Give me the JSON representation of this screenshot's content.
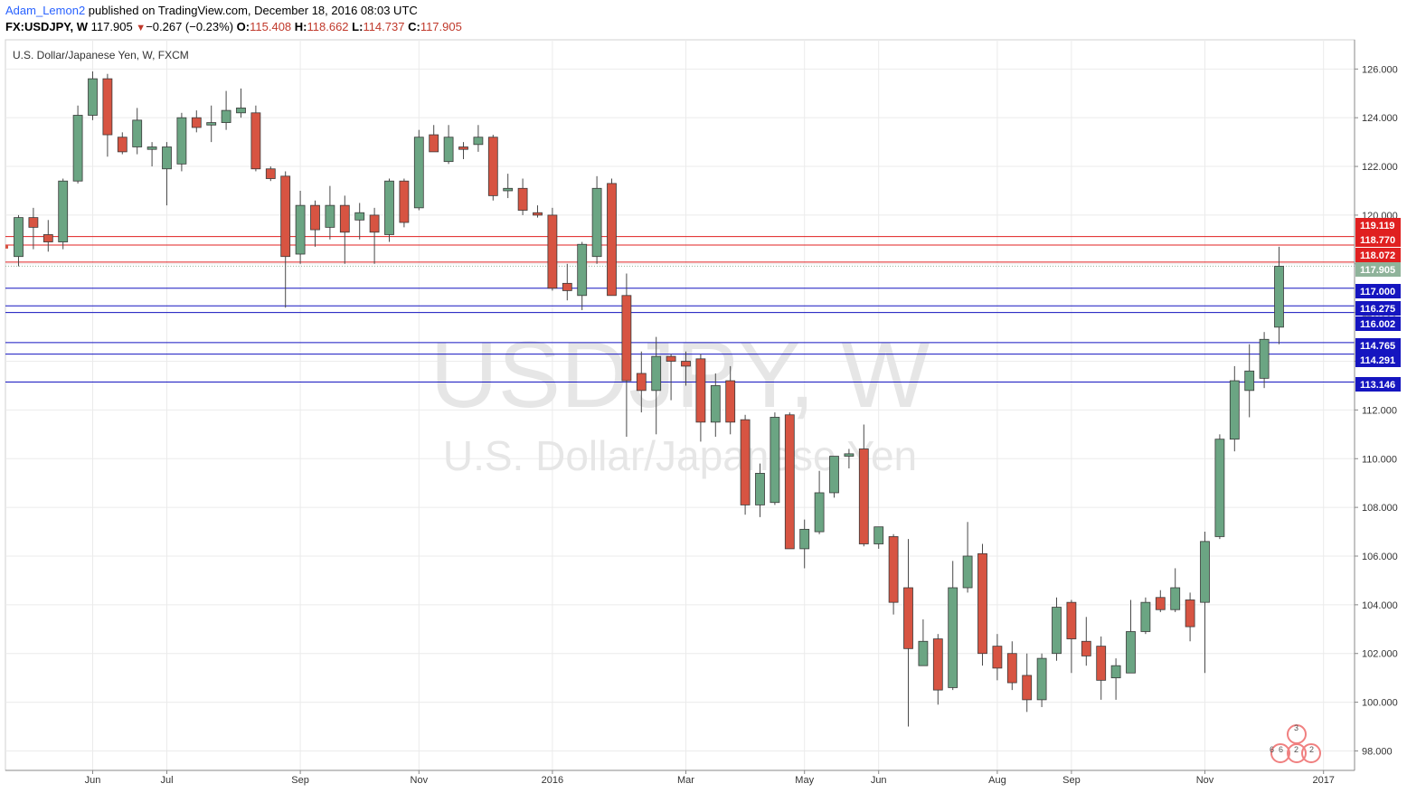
{
  "header": {
    "author": "Adam_Lemon2",
    "published": "published on TradingView.com, December 18, 2016 08:03 UTC",
    "symbol": "FX:USDJPY, W",
    "last": "117.905",
    "change": "−0.267 (−0.23%)",
    "o_label": "O:",
    "o_value": "115.408",
    "h_label": "H:",
    "h_value": "118.662",
    "l_label": "L:",
    "l_value": "114.737",
    "c_label": "C:",
    "c_value": "117.905"
  },
  "chart_data": {
    "type": "candlestick",
    "title": "U.S. Dollar/Japanese Yen, W, FXCM",
    "watermark_symbol": "USDJPY, W",
    "watermark_name": "U.S. Dollar/Japanese Yen",
    "ylim": [
      97.2,
      127.2
    ],
    "y_ticks": [
      "98.000",
      "100.000",
      "102.000",
      "104.000",
      "106.000",
      "108.000",
      "110.000",
      "112.000",
      "114.000",
      "116.000",
      "118.000",
      "120.000",
      "122.000",
      "124.000",
      "126.000"
    ],
    "x_ticks": [
      {
        "label": "Jun",
        "index": 5
      },
      {
        "label": "Jul",
        "index": 10
      },
      {
        "label": "Sep",
        "index": 19
      },
      {
        "label": "Nov",
        "index": 27
      },
      {
        "label": "2016",
        "index": 36
      },
      {
        "label": "Mar",
        "index": 45
      },
      {
        "label": "May",
        "index": 53
      },
      {
        "label": "Jun",
        "index": 58
      },
      {
        "label": "Aug",
        "index": 66
      },
      {
        "label": "Sep",
        "index": 71
      },
      {
        "label": "Nov",
        "index": 80
      },
      {
        "label": "2017",
        "index": 88
      }
    ],
    "grid": true,
    "candles": [
      {
        "o": 118.3,
        "h": 120.0,
        "l": 117.9,
        "c": 119.9
      },
      {
        "o": 119.9,
        "h": 120.3,
        "l": 118.6,
        "c": 119.5
      },
      {
        "o": 119.2,
        "h": 119.8,
        "l": 118.5,
        "c": 118.9
      },
      {
        "o": 118.9,
        "h": 121.5,
        "l": 118.6,
        "c": 121.4
      },
      {
        "o": 121.4,
        "h": 124.5,
        "l": 121.3,
        "c": 124.1
      },
      {
        "o": 124.1,
        "h": 125.9,
        "l": 123.9,
        "c": 125.6
      },
      {
        "o": 125.6,
        "h": 125.8,
        "l": 122.4,
        "c": 123.3
      },
      {
        "o": 123.2,
        "h": 123.4,
        "l": 122.5,
        "c": 122.6
      },
      {
        "o": 122.8,
        "h": 124.4,
        "l": 122.5,
        "c": 123.9
      },
      {
        "o": 122.7,
        "h": 123.0,
        "l": 122.0,
        "c": 122.8
      },
      {
        "o": 121.9,
        "h": 123.0,
        "l": 120.4,
        "c": 122.8
      },
      {
        "o": 122.1,
        "h": 124.2,
        "l": 121.8,
        "c": 124.0
      },
      {
        "o": 124.0,
        "h": 124.3,
        "l": 123.4,
        "c": 123.6
      },
      {
        "o": 123.7,
        "h": 124.5,
        "l": 123.0,
        "c": 123.8
      },
      {
        "o": 123.8,
        "h": 125.1,
        "l": 123.5,
        "c": 124.3
      },
      {
        "o": 124.2,
        "h": 125.2,
        "l": 124.0,
        "c": 124.4
      },
      {
        "o": 124.2,
        "h": 124.5,
        "l": 121.8,
        "c": 121.9
      },
      {
        "o": 121.9,
        "h": 122.0,
        "l": 121.4,
        "c": 121.5
      },
      {
        "o": 121.6,
        "h": 121.8,
        "l": 116.2,
        "c": 118.3
      },
      {
        "o": 118.4,
        "h": 121.0,
        "l": 118.0,
        "c": 120.4
      },
      {
        "o": 120.4,
        "h": 120.6,
        "l": 118.7,
        "c": 119.4
      },
      {
        "o": 119.5,
        "h": 121.2,
        "l": 119.0,
        "c": 120.4
      },
      {
        "o": 120.4,
        "h": 120.8,
        "l": 118.0,
        "c": 119.3
      },
      {
        "o": 119.8,
        "h": 120.5,
        "l": 119.0,
        "c": 120.1
      },
      {
        "o": 120.0,
        "h": 120.3,
        "l": 118.0,
        "c": 119.3
      },
      {
        "o": 119.2,
        "h": 121.5,
        "l": 118.9,
        "c": 121.4
      },
      {
        "o": 121.4,
        "h": 121.5,
        "l": 119.5,
        "c": 119.7
      },
      {
        "o": 120.3,
        "h": 123.5,
        "l": 120.2,
        "c": 123.2
      },
      {
        "o": 123.3,
        "h": 123.7,
        "l": 122.6,
        "c": 122.6
      },
      {
        "o": 122.2,
        "h": 123.7,
        "l": 122.1,
        "c": 123.2
      },
      {
        "o": 122.8,
        "h": 123.0,
        "l": 122.3,
        "c": 122.7
      },
      {
        "o": 122.9,
        "h": 123.7,
        "l": 122.6,
        "c": 123.2
      },
      {
        "o": 123.2,
        "h": 123.3,
        "l": 120.6,
        "c": 120.8
      },
      {
        "o": 121.0,
        "h": 121.7,
        "l": 120.7,
        "c": 121.1
      },
      {
        "o": 121.1,
        "h": 121.5,
        "l": 120.0,
        "c": 120.2
      },
      {
        "o": 120.1,
        "h": 120.4,
        "l": 119.9,
        "c": 120.0
      },
      {
        "o": 120.0,
        "h": 120.3,
        "l": 116.9,
        "c": 117.0
      },
      {
        "o": 117.2,
        "h": 118.0,
        "l": 116.5,
        "c": 116.9
      },
      {
        "o": 116.7,
        "h": 118.9,
        "l": 116.1,
        "c": 118.8
      },
      {
        "o": 118.3,
        "h": 121.6,
        "l": 118.0,
        "c": 121.1
      },
      {
        "o": 121.3,
        "h": 121.5,
        "l": 116.7,
        "c": 116.7
      },
      {
        "o": 116.7,
        "h": 117.6,
        "l": 110.9,
        "c": 113.2
      },
      {
        "o": 113.5,
        "h": 114.4,
        "l": 111.9,
        "c": 112.8
      },
      {
        "o": 112.8,
        "h": 115.0,
        "l": 111.0,
        "c": 114.2
      },
      {
        "o": 114.2,
        "h": 114.3,
        "l": 112.4,
        "c": 114.0
      },
      {
        "o": 114.0,
        "h": 114.4,
        "l": 113.0,
        "c": 113.8
      },
      {
        "o": 114.1,
        "h": 114.3,
        "l": 110.7,
        "c": 111.5
      },
      {
        "o": 111.5,
        "h": 113.5,
        "l": 110.9,
        "c": 113.0
      },
      {
        "o": 113.2,
        "h": 113.8,
        "l": 111.0,
        "c": 111.5
      },
      {
        "o": 111.6,
        "h": 111.8,
        "l": 107.7,
        "c": 108.1
      },
      {
        "o": 108.1,
        "h": 109.8,
        "l": 107.6,
        "c": 109.4
      },
      {
        "o": 108.2,
        "h": 111.9,
        "l": 108.1,
        "c": 111.7
      },
      {
        "o": 111.8,
        "h": 111.9,
        "l": 106.3,
        "c": 106.3
      },
      {
        "o": 106.3,
        "h": 107.5,
        "l": 105.5,
        "c": 107.1
      },
      {
        "o": 107.0,
        "h": 109.5,
        "l": 106.9,
        "c": 108.6
      },
      {
        "o": 108.6,
        "h": 110.1,
        "l": 108.4,
        "c": 110.1
      },
      {
        "o": 110.1,
        "h": 110.4,
        "l": 109.6,
        "c": 110.2
      },
      {
        "o": 110.4,
        "h": 111.4,
        "l": 106.4,
        "c": 106.5
      },
      {
        "o": 106.5,
        "h": 107.0,
        "l": 106.3,
        "c": 107.2
      },
      {
        "o": 106.8,
        "h": 106.9,
        "l": 103.6,
        "c": 104.1
      },
      {
        "o": 104.7,
        "h": 106.7,
        "l": 99.0,
        "c": 102.2
      },
      {
        "o": 101.5,
        "h": 103.4,
        "l": 101.5,
        "c": 102.5
      },
      {
        "o": 102.6,
        "h": 102.8,
        "l": 99.9,
        "c": 100.5
      },
      {
        "o": 100.6,
        "h": 105.8,
        "l": 100.5,
        "c": 104.7
      },
      {
        "o": 104.7,
        "h": 107.4,
        "l": 104.5,
        "c": 106.0
      },
      {
        "o": 106.1,
        "h": 106.5,
        "l": 101.5,
        "c": 102.0
      },
      {
        "o": 102.3,
        "h": 102.8,
        "l": 100.9,
        "c": 101.4
      },
      {
        "o": 102.0,
        "h": 102.5,
        "l": 100.5,
        "c": 100.8
      },
      {
        "o": 101.1,
        "h": 102.0,
        "l": 99.6,
        "c": 100.1
      },
      {
        "o": 100.1,
        "h": 102.0,
        "l": 99.8,
        "c": 101.8
      },
      {
        "o": 102.0,
        "h": 104.3,
        "l": 101.7,
        "c": 103.9
      },
      {
        "o": 104.1,
        "h": 104.2,
        "l": 101.2,
        "c": 102.6
      },
      {
        "o": 102.5,
        "h": 103.5,
        "l": 101.5,
        "c": 101.9
      },
      {
        "o": 102.3,
        "h": 102.7,
        "l": 100.1,
        "c": 100.9
      },
      {
        "o": 101.0,
        "h": 101.8,
        "l": 100.1,
        "c": 101.5
      },
      {
        "o": 101.2,
        "h": 104.2,
        "l": 101.2,
        "c": 102.9
      },
      {
        "o": 102.9,
        "h": 104.3,
        "l": 102.8,
        "c": 104.1
      },
      {
        "o": 104.3,
        "h": 104.6,
        "l": 103.7,
        "c": 103.8
      },
      {
        "o": 103.8,
        "h": 105.5,
        "l": 103.7,
        "c": 104.7
      },
      {
        "o": 104.2,
        "h": 104.5,
        "l": 102.5,
        "c": 103.1
      },
      {
        "o": 104.1,
        "h": 107.0,
        "l": 101.2,
        "c": 106.6
      },
      {
        "o": 106.8,
        "h": 111.0,
        "l": 106.7,
        "c": 110.8
      },
      {
        "o": 110.8,
        "h": 113.8,
        "l": 110.3,
        "c": 113.2
      },
      {
        "o": 112.8,
        "h": 114.7,
        "l": 111.7,
        "c": 113.6
      },
      {
        "o": 113.3,
        "h": 115.2,
        "l": 112.9,
        "c": 114.9
      },
      {
        "o": 115.4,
        "h": 118.7,
        "l": 114.7,
        "c": 117.9
      }
    ],
    "price_label": "117.905",
    "red_levels": [
      "119.119",
      "118.770",
      "118.072"
    ],
    "blue_levels": [
      "117.000",
      "116.275",
      "116.002",
      "114.765",
      "114.291",
      "113.146"
    ],
    "colors": {
      "up": "#6ba583",
      "down": "#d75442",
      "wick": "#4a4a4a",
      "red_level": "#e02020",
      "blue_level": "#1515c0",
      "grid": "#ebebeb",
      "price_label": "#8fb39a"
    }
  }
}
